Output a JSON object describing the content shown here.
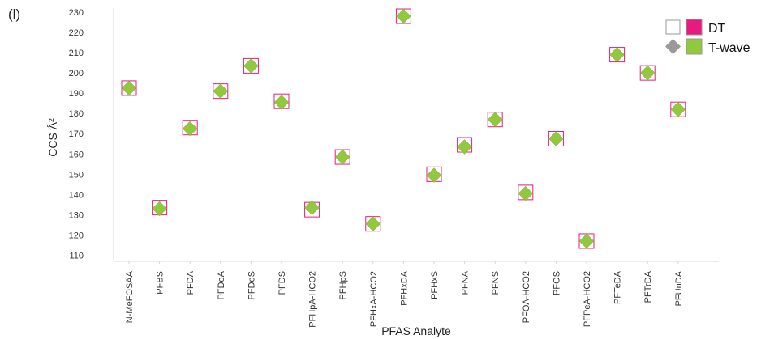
{
  "panel_label": "(l)",
  "chart_data": {
    "type": "scatter",
    "title": "",
    "xlabel": "PFAS Analyte",
    "ylabel": "CCS Å²",
    "ylim": [
      107,
      232
    ],
    "yticks": [
      110,
      120,
      130,
      140,
      150,
      160,
      170,
      180,
      190,
      200,
      210,
      220,
      230
    ],
    "grid": false,
    "legend_position": "top-right",
    "categories": [
      "N-MeFOSAA",
      "PFBS",
      "PFDA",
      "PFDoA",
      "PFDoS",
      "PFDS",
      "PFHpA-HCO2",
      "PFHpS",
      "PFHxA-HCO2",
      "PFHxDA",
      "PFHxS",
      "PFNA",
      "PFNS",
      "PFOA-HCO2",
      "PFOS",
      "PFPeA-HCO2",
      "PFTeDA",
      "PFTrDA",
      "PFUnDA"
    ],
    "series": [
      {
        "name": "DT",
        "marker": "square",
        "color": "#e8197f",
        "values": [
          192.5,
          133.5,
          173,
          191,
          203.5,
          186,
          132.5,
          158.5,
          125.5,
          228,
          150,
          164.5,
          177,
          141,
          167.5,
          117,
          209,
          200,
          182
        ]
      },
      {
        "name": "T-wave",
        "marker": "diamond",
        "color": "#92c83e",
        "values": [
          192.5,
          133,
          172.5,
          191,
          203.5,
          185.5,
          133.5,
          158.5,
          125.5,
          228,
          149.5,
          163.5,
          177,
          140.5,
          167.5,
          117,
          209,
          200,
          182
        ]
      }
    ]
  }
}
